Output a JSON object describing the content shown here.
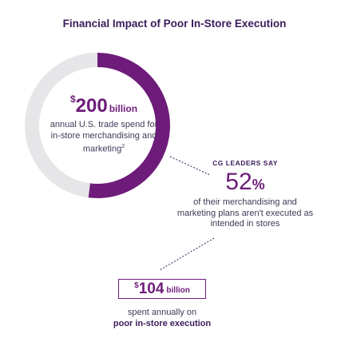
{
  "title": "Financial Impact of Poor In-Store Execution",
  "chart_data": {
    "type": "pie",
    "title": "Financial Impact of Poor In-Store Execution",
    "total": 200,
    "segments": [
      {
        "value": 104,
        "color": "#6e1c7a"
      },
      {
        "value": 96,
        "color": "#e6e6e8"
      }
    ]
  },
  "donut_center": {
    "currency": "$",
    "value": "200",
    "unit": "billion",
    "description": "annual U.S. trade spend for in-store merchandising and marketing",
    "footnote": "2"
  },
  "leaders": {
    "label": "CG LEADERS SAY",
    "percent": "52",
    "percent_symbol": "%",
    "description": "of their merchandising and marketing plans aren't executed as intended in stores"
  },
  "execution_box": {
    "currency": "$",
    "value": "104",
    "unit": "billion",
    "description_plain": "spent annually on",
    "description_bold": "poor in-store execution"
  },
  "colors": {
    "accent": "#6e1c7a",
    "track": "#e6e6e8",
    "title": "#3b1c5a"
  }
}
